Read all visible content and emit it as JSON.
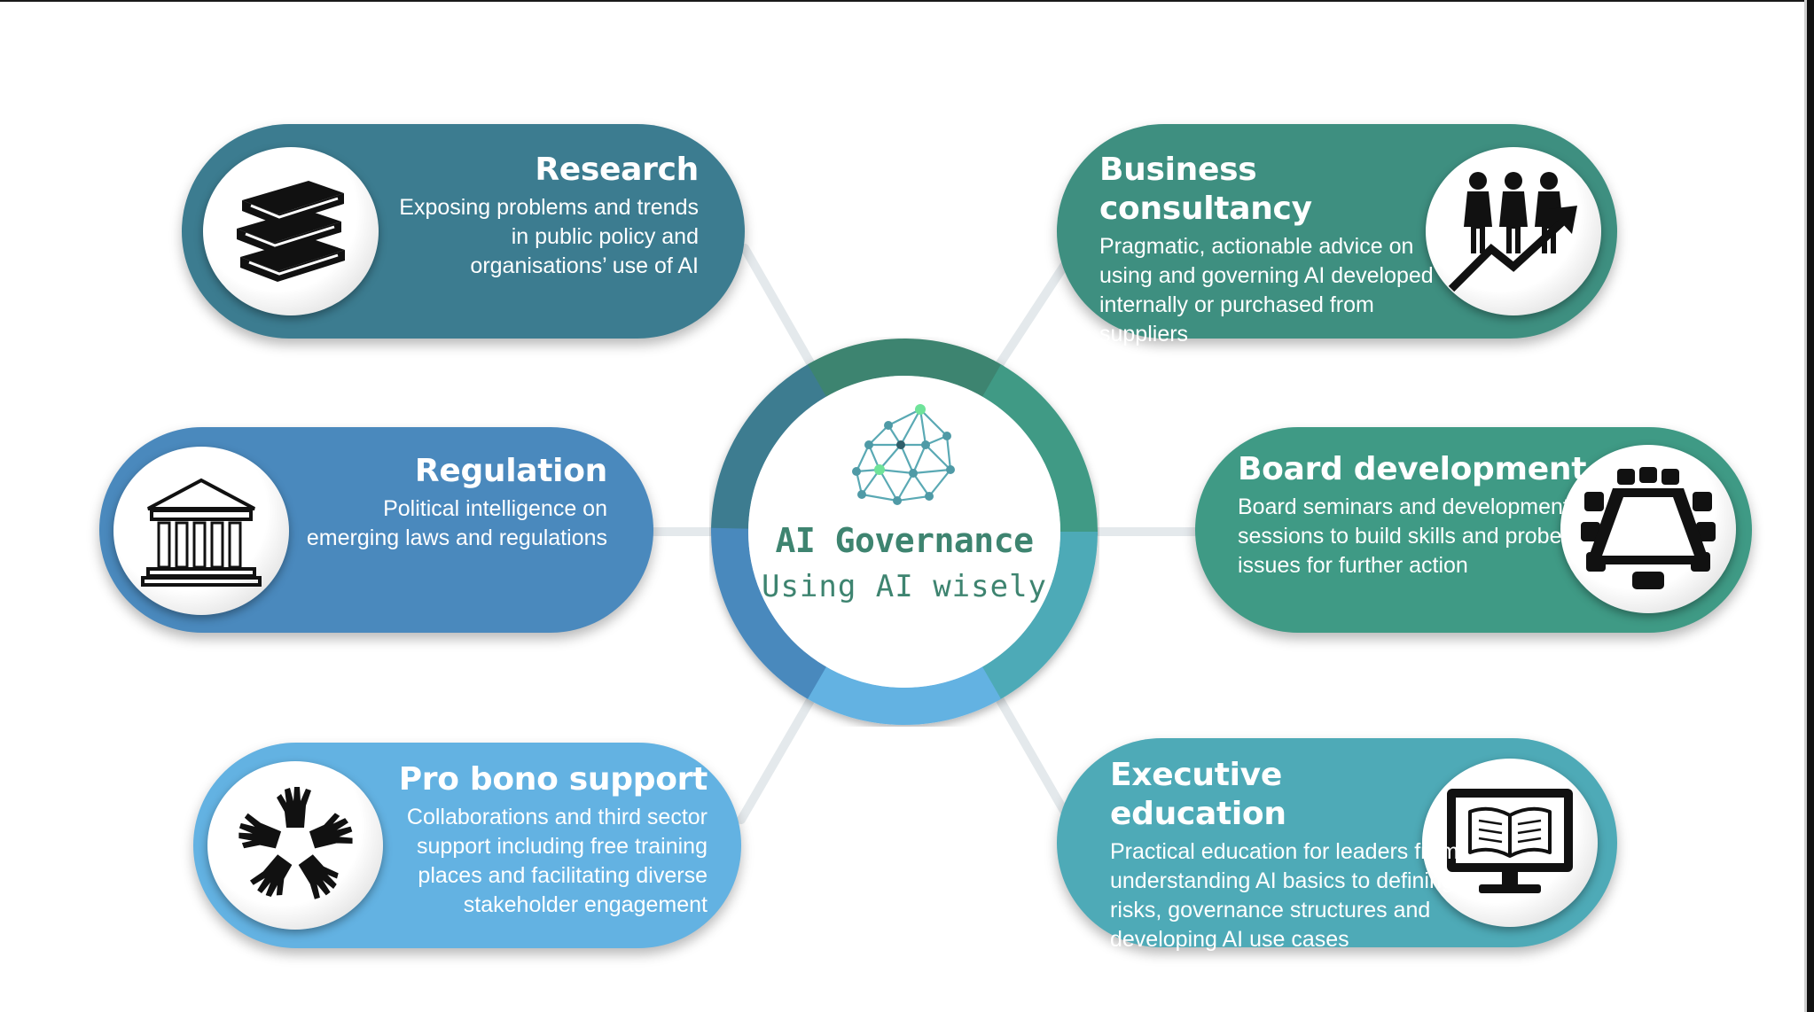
{
  "hub": {
    "title": "AI Governance",
    "subtitle": "Using AI wisely",
    "icon": "neural-network-icon",
    "colors": {
      "teal_dark": "#3c7c90",
      "teal": "#3e8f80",
      "teal_light": "#4eaab7",
      "blue": "#4a89bd",
      "blue_light": "#63b2e2",
      "text": "#3e8470"
    }
  },
  "services": {
    "research": {
      "title": "Research",
      "description": "Exposing problems and trends in public policy and organisations’ use of AI",
      "icon": "books-icon",
      "color": "#3c7c90"
    },
    "regulation": {
      "title": "Regulation",
      "description": "Political intelligence on emerging laws and regulations",
      "icon": "government-building-icon",
      "color": "#4a89bd"
    },
    "pro_bono": {
      "title": "Pro bono support",
      "description": "Collaborations and third sector support including free training places and facilitating diverse stakeholder engagement",
      "icon": "joined-hands-icon",
      "color": "#63b2e2"
    },
    "business": {
      "title": "Business consultancy",
      "description": "Pragmatic, actionable advice on using and governing AI developed internally or purchased from suppliers",
      "icon": "people-growth-chart-icon",
      "color": "#3e8f80"
    },
    "board": {
      "title": "Board development",
      "description": "Board seminars and development sessions to build skills and probe issues for further action",
      "icon": "boardroom-table-icon",
      "color": "#3f9a85"
    },
    "executive": {
      "title": "Executive education",
      "description": "Practical education for leaders from understanding AI basics to defining risks, governance structures and developing AI use cases",
      "icon": "monitor-book-icon",
      "color": "#4eaab7"
    }
  }
}
